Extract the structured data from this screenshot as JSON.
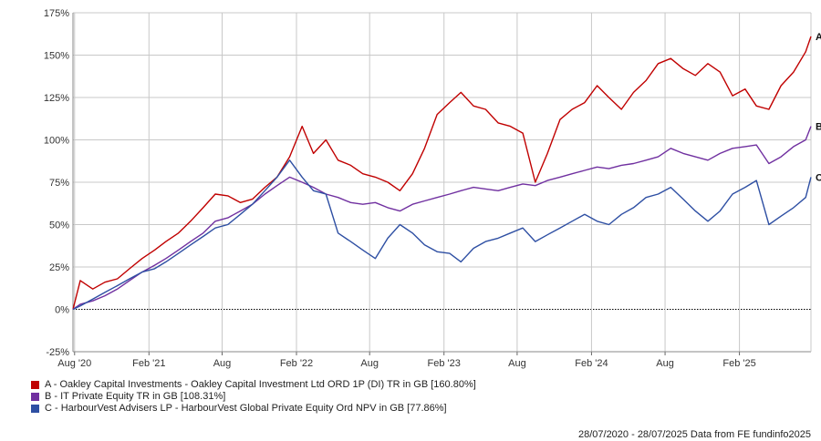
{
  "chart_data": {
    "type": "line",
    "ylim": [
      -25,
      175
    ],
    "yticks": [
      -25,
      0,
      25,
      50,
      75,
      100,
      125,
      150,
      175
    ],
    "ytick_labels": [
      "-25%",
      "0%",
      "25%",
      "50%",
      "75%",
      "100%",
      "125%",
      "150%",
      "175%"
    ],
    "xlim": [
      "2020-07-28",
      "2025-07-28"
    ],
    "xticks": [
      "2020-08-01",
      "2021-02-01",
      "2021-08-01",
      "2022-02-01",
      "2022-08-01",
      "2023-02-01",
      "2023-08-01",
      "2024-02-01",
      "2024-08-01",
      "2025-02-01"
    ],
    "xtick_labels": [
      "Aug '20",
      "Feb '21",
      "Aug",
      "Feb '22",
      "Aug",
      "Feb '23",
      "Aug",
      "Feb '24",
      "Aug",
      "Feb '25"
    ],
    "grid": true,
    "series": [
      {
        "name": "A - Oakley Capital Investments - Oakley Capital Investment Ltd ORD 1P (DI) TR in GB [160.80%]",
        "end_label": "A",
        "color": "#c00000",
        "x": [
          "2020-07-28",
          "2020-08-15",
          "2020-09-15",
          "2020-10-15",
          "2020-11-15",
          "2020-12-15",
          "2021-01-15",
          "2021-02-15",
          "2021-03-15",
          "2021-04-15",
          "2021-05-15",
          "2021-06-15",
          "2021-07-15",
          "2021-08-15",
          "2021-09-15",
          "2021-10-15",
          "2021-11-15",
          "2021-12-15",
          "2022-01-15",
          "2022-02-15",
          "2022-03-15",
          "2022-04-15",
          "2022-05-15",
          "2022-06-15",
          "2022-07-15",
          "2022-08-15",
          "2022-09-15",
          "2022-10-15",
          "2022-11-15",
          "2022-12-15",
          "2023-01-15",
          "2023-02-15",
          "2023-03-15",
          "2023-04-15",
          "2023-05-15",
          "2023-06-15",
          "2023-07-15",
          "2023-08-15",
          "2023-09-15",
          "2023-10-15",
          "2023-11-15",
          "2023-12-15",
          "2024-01-15",
          "2024-02-15",
          "2024-03-15",
          "2024-04-15",
          "2024-05-15",
          "2024-06-15",
          "2024-07-15",
          "2024-08-15",
          "2024-09-15",
          "2024-10-15",
          "2024-11-15",
          "2024-12-15",
          "2025-01-15",
          "2025-02-15",
          "2025-03-15",
          "2025-04-15",
          "2025-05-15",
          "2025-06-15",
          "2025-07-15",
          "2025-07-28"
        ],
        "values": [
          0,
          17,
          12,
          16,
          18,
          24,
          30,
          35,
          40,
          45,
          52,
          60,
          68,
          67,
          63,
          65,
          72,
          78,
          90,
          108,
          92,
          100,
          88,
          85,
          80,
          78,
          75,
          70,
          80,
          95,
          115,
          122,
          128,
          120,
          118,
          110,
          108,
          104,
          75,
          92,
          112,
          118,
          122,
          132,
          125,
          118,
          128,
          135,
          145,
          148,
          142,
          138,
          145,
          140,
          126,
          130,
          120,
          118,
          132,
          140,
          152,
          161
        ]
      },
      {
        "name": "B - IT Private Equity TR in GB [108.31%]",
        "end_label": "B",
        "color": "#7030a0",
        "x": [
          "2020-07-28",
          "2020-08-15",
          "2020-09-15",
          "2020-10-15",
          "2020-11-15",
          "2020-12-15",
          "2021-01-15",
          "2021-02-15",
          "2021-03-15",
          "2021-04-15",
          "2021-05-15",
          "2021-06-15",
          "2021-07-15",
          "2021-08-15",
          "2021-09-15",
          "2021-10-15",
          "2021-11-15",
          "2021-12-15",
          "2022-01-15",
          "2022-02-15",
          "2022-03-15",
          "2022-04-15",
          "2022-05-15",
          "2022-06-15",
          "2022-07-15",
          "2022-08-15",
          "2022-09-15",
          "2022-10-15",
          "2022-11-15",
          "2022-12-15",
          "2023-01-15",
          "2023-02-15",
          "2023-03-15",
          "2023-04-15",
          "2023-05-15",
          "2023-06-15",
          "2023-07-15",
          "2023-08-15",
          "2023-09-15",
          "2023-10-15",
          "2023-11-15",
          "2023-12-15",
          "2024-01-15",
          "2024-02-15",
          "2024-03-15",
          "2024-04-15",
          "2024-05-15",
          "2024-06-15",
          "2024-07-15",
          "2024-08-15",
          "2024-09-15",
          "2024-10-15",
          "2024-11-15",
          "2024-12-15",
          "2025-01-15",
          "2025-02-15",
          "2025-03-15",
          "2025-04-15",
          "2025-05-15",
          "2025-06-15",
          "2025-07-15",
          "2025-07-28"
        ],
        "values": [
          0,
          3,
          5,
          8,
          12,
          17,
          22,
          26,
          30,
          35,
          40,
          45,
          52,
          54,
          58,
          62,
          68,
          73,
          78,
          75,
          72,
          68,
          66,
          63,
          62,
          63,
          60,
          58,
          62,
          64,
          66,
          68,
          70,
          72,
          71,
          70,
          72,
          74,
          73,
          76,
          78,
          80,
          82,
          84,
          83,
          85,
          86,
          88,
          90,
          95,
          92,
          90,
          88,
          92,
          95,
          96,
          97,
          86,
          90,
          96,
          100,
          108
        ]
      },
      {
        "name": "C - HarbourVest Advisers LP - HarbourVest Global Private Equity Ord NPV in GB [77.86%]",
        "end_label": "C",
        "color": "#2e4fa3",
        "x": [
          "2020-07-28",
          "2020-08-15",
          "2020-09-15",
          "2020-10-15",
          "2020-11-15",
          "2020-12-15",
          "2021-01-15",
          "2021-02-15",
          "2021-03-15",
          "2021-04-15",
          "2021-05-15",
          "2021-06-15",
          "2021-07-15",
          "2021-08-15",
          "2021-09-15",
          "2021-10-15",
          "2021-11-15",
          "2021-12-15",
          "2022-01-15",
          "2022-02-15",
          "2022-03-15",
          "2022-04-15",
          "2022-05-15",
          "2022-06-15",
          "2022-07-15",
          "2022-08-15",
          "2022-09-15",
          "2022-10-15",
          "2022-11-15",
          "2022-12-15",
          "2023-01-15",
          "2023-02-15",
          "2023-03-15",
          "2023-04-15",
          "2023-05-15",
          "2023-06-15",
          "2023-07-15",
          "2023-08-15",
          "2023-09-15",
          "2023-10-15",
          "2023-11-15",
          "2023-12-15",
          "2024-01-15",
          "2024-02-15",
          "2024-03-15",
          "2024-04-15",
          "2024-05-15",
          "2024-06-15",
          "2024-07-15",
          "2024-08-15",
          "2024-09-15",
          "2024-10-15",
          "2024-11-15",
          "2024-12-15",
          "2025-01-15",
          "2025-02-15",
          "2025-03-15",
          "2025-04-15",
          "2025-05-15",
          "2025-06-15",
          "2025-07-15",
          "2025-07-28"
        ],
        "values": [
          0,
          2,
          6,
          10,
          14,
          18,
          22,
          24,
          28,
          33,
          38,
          43,
          48,
          50,
          56,
          62,
          70,
          78,
          88,
          78,
          70,
          68,
          45,
          40,
          35,
          30,
          42,
          50,
          45,
          38,
          34,
          33,
          28,
          36,
          40,
          42,
          45,
          48,
          40,
          44,
          48,
          52,
          56,
          52,
          50,
          56,
          60,
          66,
          68,
          72,
          65,
          58,
          52,
          58,
          68,
          72,
          76,
          50,
          55,
          60,
          66,
          78
        ]
      }
    ]
  },
  "legend": [
    {
      "label": "A - Oakley Capital Investments - Oakley Capital Investment Ltd ORD 1P (DI) TR in GB [160.80%]",
      "color": "#c00000"
    },
    {
      "label": "B - IT Private Equity TR in GB [108.31%]",
      "color": "#7030a0"
    },
    {
      "label": "C - HarbourVest Advisers LP - HarbourVest Global Private Equity Ord NPV in GB [77.86%]",
      "color": "#2e4fa3"
    }
  ],
  "footer": "28/07/2020 - 28/07/2025 Data from FE fundinfo2025"
}
